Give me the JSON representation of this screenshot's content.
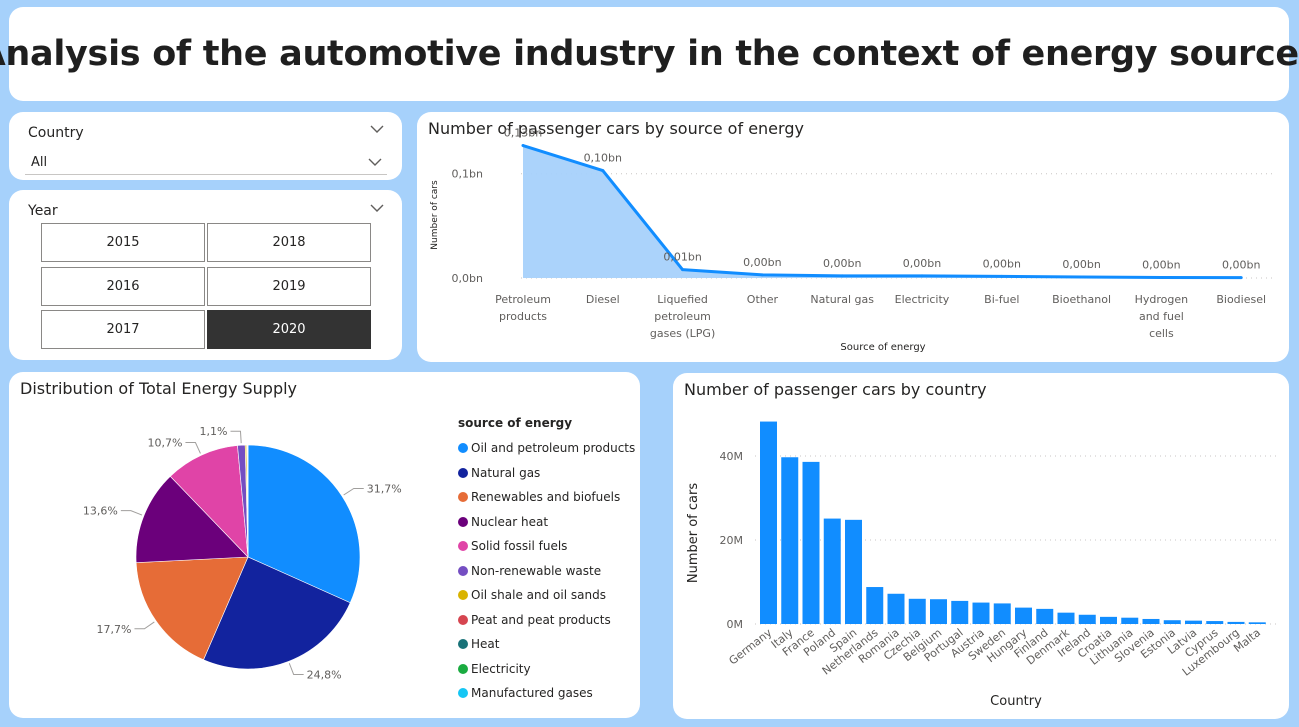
{
  "header": {
    "title": "Analysis of the automotive industry in the context of energy sources"
  },
  "country_slicer": {
    "label": "Country",
    "selected": "All"
  },
  "year_slicer": {
    "label": "Year",
    "options": [
      "2015",
      "2018",
      "2016",
      "2019",
      "2017",
      "2020"
    ],
    "selected": "2020"
  },
  "colors": {
    "background": "#a6d1fb",
    "line": "#118dff",
    "area": "#a6d1fb",
    "bar": "#118dff",
    "tile_selected": "#333333"
  },
  "chart_data": [
    {
      "type": "line",
      "title": "Number of passenger cars by source of energy",
      "xlabel": "Source of energy",
      "ylabel": "Number of cars",
      "categories": [
        "Petroleum products",
        "Diesel",
        "Liquefied petroleum gases (LPG)",
        "Other",
        "Natural gas",
        "Electricity",
        "Bi-fuel",
        "Bioethanol",
        "Hydrogen and fuel cells",
        "Biodiesel"
      ],
      "category_lines": [
        [
          "Petroleum",
          "products"
        ],
        [
          "Diesel"
        ],
        [
          "Liquefied",
          "petroleum",
          "gases (LPG)"
        ],
        [
          "Other"
        ],
        [
          "Natural gas"
        ],
        [
          "Electricity"
        ],
        [
          "Bi-fuel"
        ],
        [
          "Bioethanol"
        ],
        [
          "Hydrogen",
          "and fuel",
          "cells"
        ],
        [
          "Biodiesel"
        ]
      ],
      "values": [
        0.127,
        0.103,
        0.008,
        0.003,
        0.002,
        0.002,
        0.0015,
        0.001,
        0.0005,
        0.0003
      ],
      "data_labels": [
        "0,13bn",
        "0,10bn",
        "0,01bn",
        "0,00bn",
        "0,00bn",
        "0,00bn",
        "0,00bn",
        "0,00bn",
        "0,00bn",
        "0,00bn"
      ],
      "ylim": [
        0,
        0.14
      ],
      "yticks": [
        0,
        0.1
      ],
      "ytick_labels": [
        "0,0bn",
        "0,1bn"
      ],
      "grid": true,
      "area_fill": true
    },
    {
      "type": "pie",
      "title": "Distribution of Total Energy Supply",
      "legend_title": "source of energy",
      "legend_position": "right",
      "slices": [
        {
          "name": "Oil and petroleum products",
          "value": 31.7,
          "label": "31,7%",
          "color": "#118dff"
        },
        {
          "name": "Natural gas",
          "value": 24.8,
          "label": "24,8%",
          "color": "#12239e"
        },
        {
          "name": "Renewables and biofuels",
          "value": 17.7,
          "label": "17,7%",
          "color": "#e66c37"
        },
        {
          "name": "Nuclear heat",
          "value": 13.6,
          "label": "13,6%",
          "color": "#6b007b"
        },
        {
          "name": "Solid fossil fuels",
          "value": 10.7,
          "label": "10,7%",
          "color": "#e044a7"
        },
        {
          "name": "Non-renewable waste",
          "value": 1.1,
          "label": "1,1%",
          "color": "#744ec2"
        },
        {
          "name": "Oil shale and oil sands",
          "value": 0.2,
          "label": "",
          "color": "#d9b300"
        },
        {
          "name": "Peat and peat products",
          "value": 0.1,
          "label": "",
          "color": "#d64550"
        },
        {
          "name": "Heat",
          "value": 0.05,
          "label": "",
          "color": "#197278"
        },
        {
          "name": "Electricity",
          "value": 0.03,
          "label": "",
          "color": "#1aab40"
        },
        {
          "name": "Manufactured gases",
          "value": 0.02,
          "label": "",
          "color": "#15c6f4"
        }
      ]
    },
    {
      "type": "bar",
      "title": "Number of passenger cars by country",
      "xlabel": "Country",
      "ylabel": "Number of cars",
      "categories": [
        "Germany",
        "Italy",
        "France",
        "Poland",
        "Spain",
        "Netherlands",
        "Romania",
        "Czechia",
        "Belgium",
        "Portugal",
        "Austria",
        "Sweden",
        "Hungary",
        "Finland",
        "Denmark",
        "Ireland",
        "Croatia",
        "Lithuania",
        "Slovenia",
        "Estonia",
        "Latvia",
        "Cyprus",
        "Luxembourg",
        "Malta"
      ],
      "values": [
        48.2,
        39.7,
        38.6,
        25.1,
        24.8,
        8.8,
        7.2,
        6.0,
        5.9,
        5.5,
        5.1,
        4.9,
        3.9,
        3.6,
        2.7,
        2.2,
        1.7,
        1.5,
        1.2,
        0.9,
        0.8,
        0.7,
        0.5,
        0.4
      ],
      "value_unit": "M",
      "ylim": [
        0,
        50
      ],
      "yticks": [
        0,
        20,
        40
      ],
      "ytick_labels": [
        "0M",
        "20M",
        "40M"
      ],
      "grid": true
    }
  ]
}
